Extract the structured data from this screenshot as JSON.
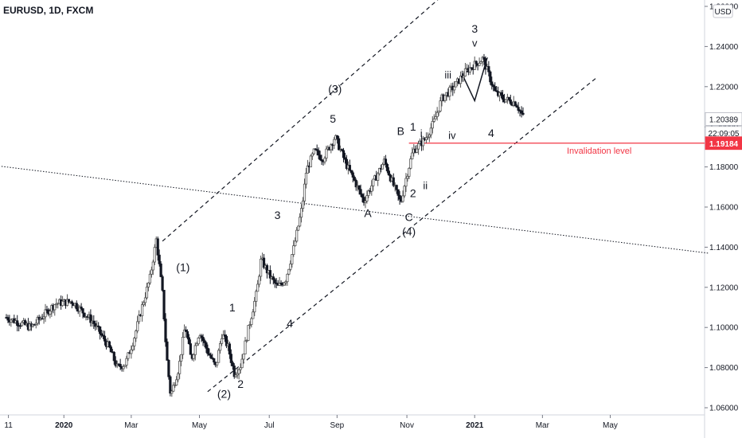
{
  "chart_data": {
    "type": "candlestick",
    "title": "EURUSD, 1D, FXCM",
    "currency": "USD",
    "price_ticks": [
      "1.06000",
      "1.08000",
      "1.10000",
      "1.12000",
      "1.14000",
      "1.16000",
      "1.18000",
      "1.20000",
      "1.22000",
      "1.24000",
      "1.26000"
    ],
    "ylim": [
      1.06,
      1.26
    ],
    "time_ticks": [
      "11",
      "2020",
      "Mar",
      "May",
      "Jul",
      "Sep",
      "Nov",
      "2021",
      "Mar",
      "May"
    ],
    "price_labels": [
      {
        "text": "1.20389",
        "value": 1.20389,
        "style": "current"
      },
      {
        "text": "22:09:05",
        "value": 1.197,
        "style": "timer"
      },
      {
        "text": "1.19184",
        "value": 1.19184,
        "style": "invalidation"
      }
    ],
    "invalidation": {
      "label": "Invalidation level",
      "value": 1.19184,
      "from_month": 2020.84
    },
    "price_path": [
      [
        2019.86,
        1.105
      ],
      [
        2019.92,
        1.1
      ],
      [
        2019.98,
        1.112
      ],
      [
        2020.02,
        1.113
      ],
      [
        2020.07,
        1.103
      ],
      [
        2020.11,
        1.09
      ],
      [
        2020.13,
        1.08
      ],
      [
        2020.15,
        1.082
      ],
      [
        2020.17,
        1.094
      ],
      [
        2020.19,
        1.11
      ],
      [
        2020.21,
        1.125
      ],
      [
        2020.225,
        1.144
      ],
      [
        2020.24,
        1.117
      ],
      [
        2020.25,
        1.086
      ],
      [
        2020.26,
        1.066
      ],
      [
        2020.28,
        1.08
      ],
      [
        2020.295,
        1.101
      ],
      [
        2020.31,
        1.084
      ],
      [
        2020.33,
        1.098
      ],
      [
        2020.35,
        1.088
      ],
      [
        2020.37,
        1.08
      ],
      [
        2020.385,
        1.097
      ],
      [
        2020.4,
        1.09
      ],
      [
        2020.415,
        1.077
      ],
      [
        2020.43,
        1.081
      ],
      [
        2020.45,
        1.1
      ],
      [
        2020.47,
        1.118
      ],
      [
        2020.48,
        1.134
      ],
      [
        2020.5,
        1.126
      ],
      [
        2020.52,
        1.12
      ],
      [
        2020.54,
        1.124
      ],
      [
        2020.56,
        1.14
      ],
      [
        2020.58,
        1.16
      ],
      [
        2020.59,
        1.178
      ],
      [
        2020.61,
        1.188
      ],
      [
        2020.63,
        1.184
      ],
      [
        2020.66,
        1.195
      ],
      [
        2020.69,
        1.18
      ],
      [
        2020.71,
        1.172
      ],
      [
        2020.73,
        1.163
      ],
      [
        2020.76,
        1.175
      ],
      [
        2020.78,
        1.183
      ],
      [
        2020.8,
        1.172
      ],
      [
        2020.82,
        1.162
      ],
      [
        2020.83,
        1.172
      ],
      [
        2020.85,
        1.188
      ],
      [
        2020.88,
        1.194
      ],
      [
        2020.9,
        1.202
      ],
      [
        2020.92,
        1.214
      ],
      [
        2020.95,
        1.22
      ],
      [
        2020.98,
        1.228
      ],
      [
        2021.02,
        1.234
      ],
      [
        2021.05,
        1.217
      ],
      [
        2021.07,
        1.214
      ],
      [
        2021.1,
        1.212
      ],
      [
        2021.12,
        1.204
      ]
    ],
    "channel_upper": [
      [
        2020.24,
        1.143
      ],
      [
        2021.02,
        1.283
      ]
    ],
    "channel_lower": [
      [
        2020.35,
        1.068
      ],
      [
        2021.3,
        1.225
      ]
    ],
    "trendline": [
      [
        2019.7,
        1.184
      ],
      [
        2021.57,
        1.137
      ]
    ],
    "triangle": [
      [
        2020.97,
        1.226
      ],
      [
        2021.03,
        1.234
      ],
      [
        2021.0,
        1.213
      ]
    ],
    "wave_labels": [
      {
        "text": "(1)",
        "t": 2020.29,
        "p": 1.128
      },
      {
        "text": "(2)",
        "t": 2020.39,
        "p": 1.065
      },
      {
        "text": "(3)",
        "t": 2020.66,
        "p": 1.217
      },
      {
        "text": "(4)",
        "t": 2020.84,
        "p": 1.146
      },
      {
        "text": "1",
        "t": 2020.41,
        "p": 1.108
      },
      {
        "text": "2",
        "t": 2020.43,
        "p": 1.07
      },
      {
        "text": "3",
        "t": 2020.52,
        "p": 1.154
      },
      {
        "text": "4",
        "t": 2020.55,
        "p": 1.1
      },
      {
        "text": "5",
        "t": 2020.655,
        "p": 1.202
      },
      {
        "text": "A",
        "t": 2020.74,
        "p": 1.155
      },
      {
        "text": "B",
        "t": 2020.82,
        "p": 1.196
      },
      {
        "text": "C",
        "t": 2020.84,
        "p": 1.153
      },
      {
        "text": "1",
        "t": 2020.85,
        "p": 1.198
      },
      {
        "text": "2",
        "t": 2020.85,
        "p": 1.165
      },
      {
        "text": "i",
        "t": 2020.87,
        "p": 1.195
      },
      {
        "text": "ii",
        "t": 2020.88,
        "p": 1.169
      },
      {
        "text": "iii",
        "t": 2020.935,
        "p": 1.224
      },
      {
        "text": "iv",
        "t": 2020.945,
        "p": 1.194
      },
      {
        "text": "3",
        "t": 2021.0,
        "p": 1.247
      },
      {
        "text": "v",
        "t": 2021.0,
        "p": 1.24
      },
      {
        "text": "4",
        "t": 2021.04,
        "p": 1.195
      }
    ],
    "colors": {
      "up": "#555555",
      "down": "#131722",
      "invalidation": "#f23645",
      "channel": "#131722",
      "roman": "#2d3a6e"
    }
  }
}
